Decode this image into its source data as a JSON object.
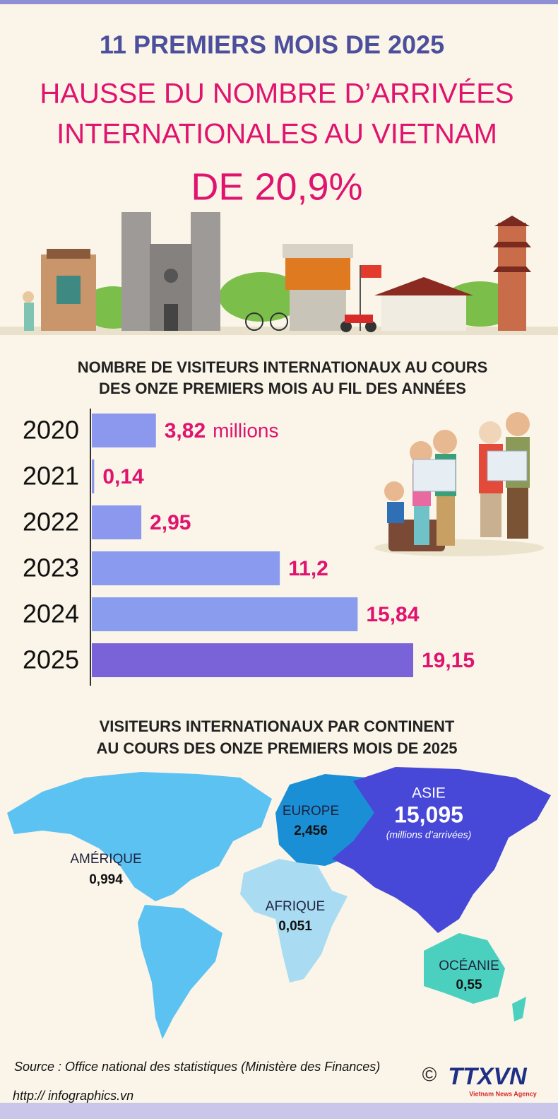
{
  "header": {
    "title": "11 PREMIERS MOIS DE 2025",
    "headline": [
      "HAUSSE DU NOMBRE D’ARRIVÉES",
      "INTERNATIONALES AU VIETNAM"
    ],
    "highlight": "DE 20,9%"
  },
  "chart_data": {
    "type": "bar",
    "orientation": "horizontal",
    "title": [
      "NOMBRE DE VISITEURS INTERNATIONAUX AU COURS",
      "DES ONZE PREMIERS MOIS AU FIL DES ANNÉES"
    ],
    "categories": [
      "2020",
      "2021",
      "2022",
      "2023",
      "2024",
      "2025"
    ],
    "values": [
      3.82,
      0.14,
      2.95,
      11.2,
      15.84,
      19.15
    ],
    "value_labels": [
      "3,82",
      "0,14",
      "2,95",
      "11,2",
      "15,84",
      "19,15"
    ],
    "unit": "millions",
    "colors": [
      "#8b98ee",
      "#8b98ee",
      "#8b98ee",
      "#8a9aee",
      "#8a9cee",
      "#7a62d8"
    ]
  },
  "map": {
    "title": [
      "VISITEURS INTERNATIONAUX PAR CONTINENT",
      "AU COURS DES ONZE PREMIERS MOIS DE 2025"
    ],
    "regions": [
      {
        "name": "AMÉRIQUE",
        "value": "0,994"
      },
      {
        "name": "EUROPE",
        "value": "2,456"
      },
      {
        "name": "ASIE",
        "value": "15,095",
        "note": "(millions d’arrivées)"
      },
      {
        "name": "AFRIQUE",
        "value": "0,051"
      },
      {
        "name": "OCÉANIE",
        "value": "0,55"
      }
    ]
  },
  "footer": {
    "source": "Source : Office national des statistiques (Ministère des Finances)",
    "url": "http:// infographics.vn",
    "copyright": "©",
    "logo": "TTXVN",
    "agency": "Vietnam News Agency"
  }
}
